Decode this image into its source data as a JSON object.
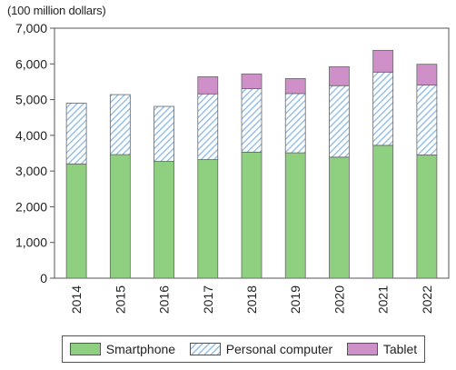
{
  "chart_data": {
    "type": "bar",
    "stacked": true,
    "unit_label": "(100 million dollars)",
    "categories": [
      "2014",
      "2015",
      "2016",
      "2017",
      "2018",
      "2019",
      "2020",
      "2021",
      "2022"
    ],
    "series": [
      {
        "name": "Smartphone",
        "color": "#8fcf80",
        "pattern": "solid",
        "values": [
          3200,
          3460,
          3270,
          3320,
          3530,
          3510,
          3390,
          3720,
          3450
        ]
      },
      {
        "name": "Personal computer",
        "color": "#8ab8e6",
        "pattern": "hatched",
        "values": [
          1700,
          1680,
          1540,
          1840,
          1780,
          1660,
          2000,
          2050,
          1960
        ]
      },
      {
        "name": "Tablet",
        "color": "#cf8fc8",
        "pattern": "solid",
        "values": [
          0,
          0,
          0,
          480,
          410,
          420,
          530,
          610,
          580
        ]
      }
    ],
    "ylim": [
      0,
      7000
    ],
    "yticks": [
      0,
      1000,
      2000,
      3000,
      4000,
      5000,
      6000,
      7000
    ],
    "ytick_labels": [
      "0",
      "1,000",
      "2,000",
      "3,000",
      "4,000",
      "5,000",
      "6,000",
      "7,000"
    ],
    "grid": false,
    "legend_position": "bottom"
  }
}
